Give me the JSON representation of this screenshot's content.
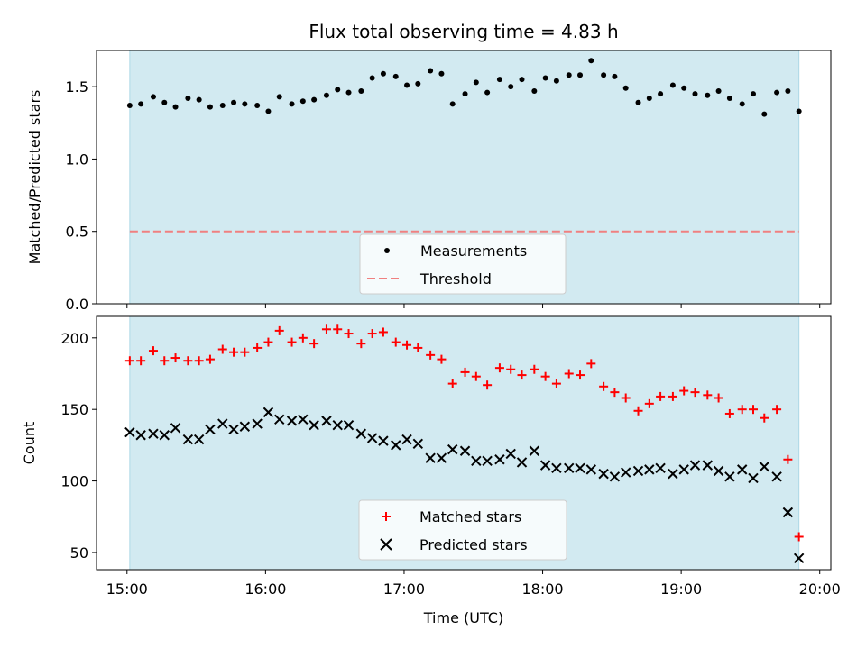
{
  "chart_data": {
    "title": "Flux total observing time = 4.83 h",
    "xlabel": "Time (UTC)",
    "x_ticks": [
      "15:00",
      "16:00",
      "17:00",
      "18:00",
      "19:00",
      "20:00"
    ],
    "x_tick_hours": [
      15,
      16,
      17,
      18,
      19,
      20
    ],
    "xlim": [
      14.78,
      20.08
    ],
    "shaded_span": [
      15.02,
      19.85
    ],
    "shade_color": "#add8e6",
    "panels": [
      {
        "type": "scatter",
        "ylabel": "Matched/Predicted stars",
        "ylim": [
          0,
          1.75
        ],
        "y_ticks": [
          0,
          0.5,
          1.0,
          1.5
        ],
        "y_tick_labels": [
          "0.0",
          "0.5",
          "1.0",
          "1.5"
        ],
        "legend_position": "lower-center",
        "threshold": {
          "name": "Threshold",
          "value": 0.5,
          "color": "#f08080"
        },
        "series": [
          {
            "name": "Measurements",
            "color": "#000000",
            "marker": "dot",
            "x": [
              15.02,
              15.1,
              15.19,
              15.27,
              15.35,
              15.44,
              15.52,
              15.6,
              15.69,
              15.77,
              15.85,
              15.94,
              16.02,
              16.1,
              16.19,
              16.27,
              16.35,
              16.44,
              16.52,
              16.6,
              16.69,
              16.77,
              16.85,
              16.94,
              17.02,
              17.1,
              17.19,
              17.27,
              17.35,
              17.44,
              17.52,
              17.6,
              17.69,
              17.77,
              17.85,
              17.94,
              18.02,
              18.1,
              18.19,
              18.27,
              18.35,
              18.44,
              18.52,
              18.6,
              18.69,
              18.77,
              18.85,
              18.94,
              19.02,
              19.1,
              19.19,
              19.27,
              19.35,
              19.44,
              19.52,
              19.6,
              19.69,
              19.77,
              19.85
            ],
            "y": [
              1.37,
              1.38,
              1.43,
              1.39,
              1.36,
              1.42,
              1.41,
              1.36,
              1.37,
              1.39,
              1.38,
              1.37,
              1.33,
              1.43,
              1.38,
              1.4,
              1.41,
              1.44,
              1.48,
              1.46,
              1.47,
              1.56,
              1.59,
              1.57,
              1.51,
              1.52,
              1.61,
              1.59,
              1.38,
              1.45,
              1.53,
              1.46,
              1.55,
              1.5,
              1.55,
              1.47,
              1.56,
              1.54,
              1.58,
              1.58,
              1.68,
              1.58,
              1.57,
              1.49,
              1.39,
              1.42,
              1.45,
              1.51,
              1.49,
              1.45,
              1.44,
              1.47,
              1.42,
              1.38,
              1.45,
              1.31,
              1.46,
              1.47,
              1.33
            ]
          }
        ]
      },
      {
        "type": "scatter",
        "ylabel": "Count",
        "ylim": [
          38,
          215
        ],
        "y_ticks": [
          50,
          100,
          150,
          200
        ],
        "y_tick_labels": [
          "50",
          "100",
          "150",
          "200"
        ],
        "legend_position": "lower-center",
        "series": [
          {
            "name": "Matched stars",
            "color": "#ff0000",
            "marker": "plus",
            "x": [
              15.02,
              15.1,
              15.19,
              15.27,
              15.35,
              15.44,
              15.52,
              15.6,
              15.69,
              15.77,
              15.85,
              15.94,
              16.02,
              16.1,
              16.19,
              16.27,
              16.35,
              16.44,
              16.52,
              16.6,
              16.69,
              16.77,
              16.85,
              16.94,
              17.02,
              17.1,
              17.19,
              17.27,
              17.35,
              17.44,
              17.52,
              17.6,
              17.69,
              17.77,
              17.85,
              17.94,
              18.02,
              18.1,
              18.19,
              18.27,
              18.35,
              18.44,
              18.52,
              18.6,
              18.69,
              18.77,
              18.85,
              18.94,
              19.02,
              19.1,
              19.19,
              19.27,
              19.35,
              19.44,
              19.52,
              19.6,
              19.69,
              19.77,
              19.85
            ],
            "y": [
              184,
              184,
              191,
              184,
              186,
              184,
              184,
              185,
              192,
              190,
              190,
              193,
              197,
              205,
              197,
              200,
              196,
              206,
              206,
              203,
              196,
              203,
              204,
              197,
              195,
              193,
              188,
              185,
              168,
              176,
              173,
              167,
              179,
              178,
              174,
              178,
              173,
              168,
              175,
              174,
              182,
              166,
              162,
              158,
              149,
              154,
              159,
              159,
              163,
              162,
              160,
              158,
              147,
              150,
              150,
              144,
              150,
              115,
              61
            ]
          },
          {
            "name": "Predicted stars",
            "color": "#000000",
            "marker": "x",
            "x": [
              15.02,
              15.1,
              15.19,
              15.27,
              15.35,
              15.44,
              15.52,
              15.6,
              15.69,
              15.77,
              15.85,
              15.94,
              16.02,
              16.1,
              16.19,
              16.27,
              16.35,
              16.44,
              16.52,
              16.6,
              16.69,
              16.77,
              16.85,
              16.94,
              17.02,
              17.1,
              17.19,
              17.27,
              17.35,
              17.44,
              17.52,
              17.6,
              17.69,
              17.77,
              17.85,
              17.94,
              18.02,
              18.1,
              18.19,
              18.27,
              18.35,
              18.44,
              18.52,
              18.6,
              18.69,
              18.77,
              18.85,
              18.94,
              19.02,
              19.1,
              19.19,
              19.27,
              19.35,
              19.44,
              19.52,
              19.6,
              19.69,
              19.77,
              19.85
            ],
            "y": [
              134,
              132,
              133,
              132,
              137,
              129,
              129,
              136,
              140,
              136,
              138,
              140,
              148,
              143,
              142,
              143,
              139,
              142,
              139,
              139,
              133,
              130,
              128,
              125,
              129,
              126,
              116,
              116,
              122,
              121,
              114,
              114,
              115,
              119,
              113,
              121,
              111,
              109,
              109,
              109,
              108,
              105,
              103,
              106,
              107,
              108,
              109,
              105,
              108,
              111,
              111,
              107,
              103,
              108,
              102,
              110,
              103,
              78,
              46
            ]
          }
        ]
      }
    ]
  }
}
